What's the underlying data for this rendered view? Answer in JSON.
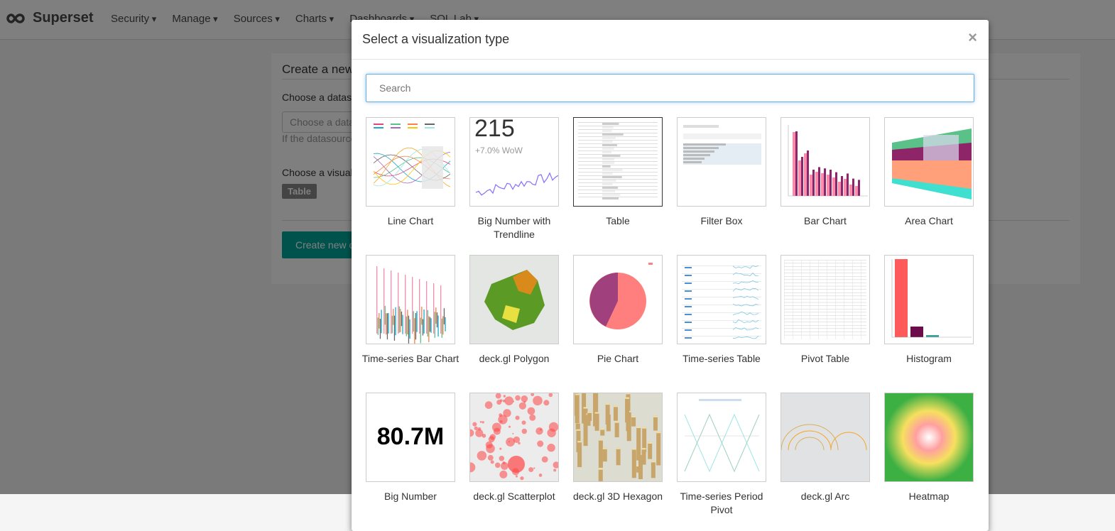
{
  "navbar": {
    "brand": "Superset",
    "items": [
      "Security",
      "Manage",
      "Sources",
      "Charts",
      "Dashboards",
      "SQL Lab"
    ]
  },
  "page": {
    "title": "Create a new chart",
    "datasource_label": "Choose a datasource",
    "datasource_placeholder": "Choose a datasource",
    "datasource_help": "If the datasource you are looking for is not available in the list, follow the instructions on how to add it.",
    "viz_label": "Choose a visualization type",
    "viz_value": "Table",
    "create_button": "Create new chart"
  },
  "modal": {
    "title": "Select a visualization type",
    "close": "×",
    "search_placeholder": "Search",
    "types": [
      {
        "label": "Line Chart"
      },
      {
        "label": "Big Number with Trendline",
        "thumb_number": "215",
        "thumb_delta": "+7.0% WoW"
      },
      {
        "label": "Table"
      },
      {
        "label": "Filter Box"
      },
      {
        "label": "Bar Chart"
      },
      {
        "label": "Area Chart"
      },
      {
        "label": "Time-series Bar Chart"
      },
      {
        "label": "deck.gl Polygon"
      },
      {
        "label": "Pie Chart"
      },
      {
        "label": "Time-series Table"
      },
      {
        "label": "Pivot Table"
      },
      {
        "label": "Histogram"
      },
      {
        "label": "Big Number",
        "thumb_number": "80.7M"
      },
      {
        "label": "deck.gl Scatterplot"
      },
      {
        "label": "deck.gl 3D Hexagon"
      },
      {
        "label": "Time-series Period Pivot"
      },
      {
        "label": "deck.gl Arc"
      },
      {
        "label": "Heatmap"
      }
    ]
  }
}
